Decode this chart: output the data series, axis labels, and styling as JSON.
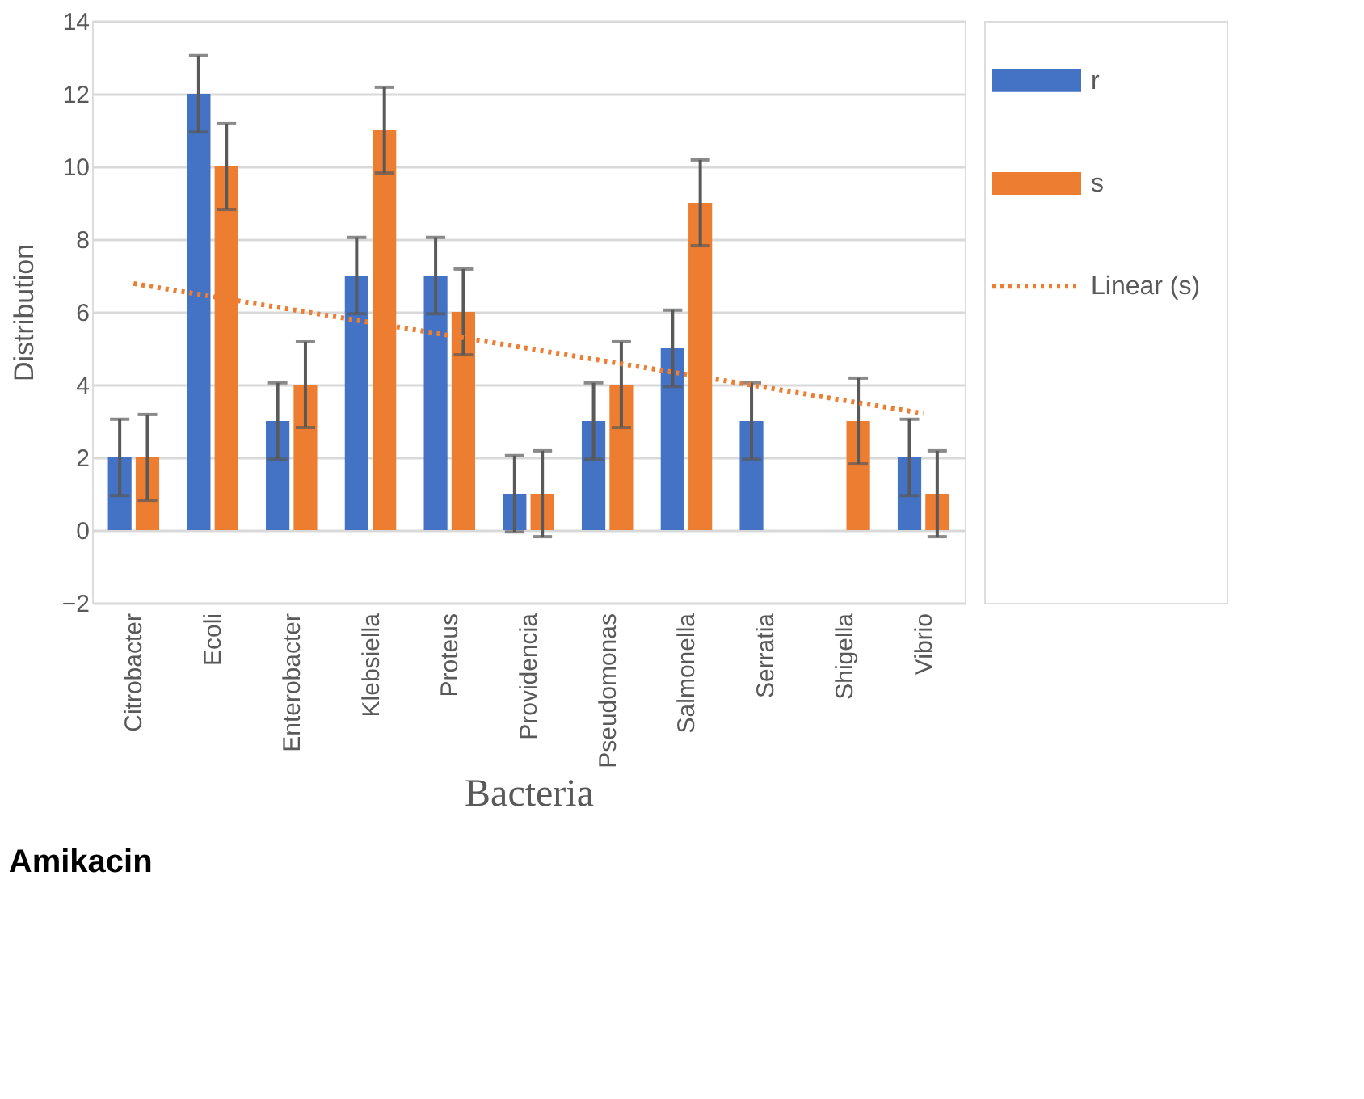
{
  "chart_data": {
    "type": "bar",
    "title": "Amikacin",
    "xlabel": "Bacteria",
    "ylabel": "Distribution",
    "categories": [
      "Citrobacter",
      "Ecoli",
      "Enterobacter",
      "Klebsiella",
      "Proteus",
      "Providencia",
      "Pseudomonas",
      "Salmonella",
      "Serratia",
      "Shigella",
      "Vibrio"
    ],
    "series": [
      {
        "name": "r",
        "color": "#4472c4",
        "values": [
          2,
          12,
          3,
          7,
          7,
          1,
          3,
          5,
          3,
          null,
          2
        ],
        "errors": [
          1.05,
          1.05,
          1.05,
          1.05,
          1.05,
          1.05,
          1.05,
          1.05,
          1.05,
          null,
          1.05
        ]
      },
      {
        "name": "s",
        "color": "#ed7d31",
        "values": [
          2,
          10,
          4,
          11,
          6,
          1,
          4,
          9,
          null,
          3,
          1
        ],
        "errors": [
          1.18,
          1.18,
          1.18,
          1.18,
          1.18,
          1.18,
          1.18,
          1.18,
          null,
          1.18,
          1.18
        ]
      },
      {
        "name": "Linear (s)",
        "type": "line",
        "color": "#ed7d31",
        "line_style": "dotted",
        "x": [
          "Citrobacter",
          "Vibrio"
        ],
        "values": [
          6.78,
          3.21
        ]
      }
    ],
    "ylim": [
      -2,
      14
    ],
    "yticks": [
      -2,
      0,
      2,
      4,
      6,
      8,
      10,
      12,
      14
    ],
    "grid": "y",
    "legend": "right"
  }
}
